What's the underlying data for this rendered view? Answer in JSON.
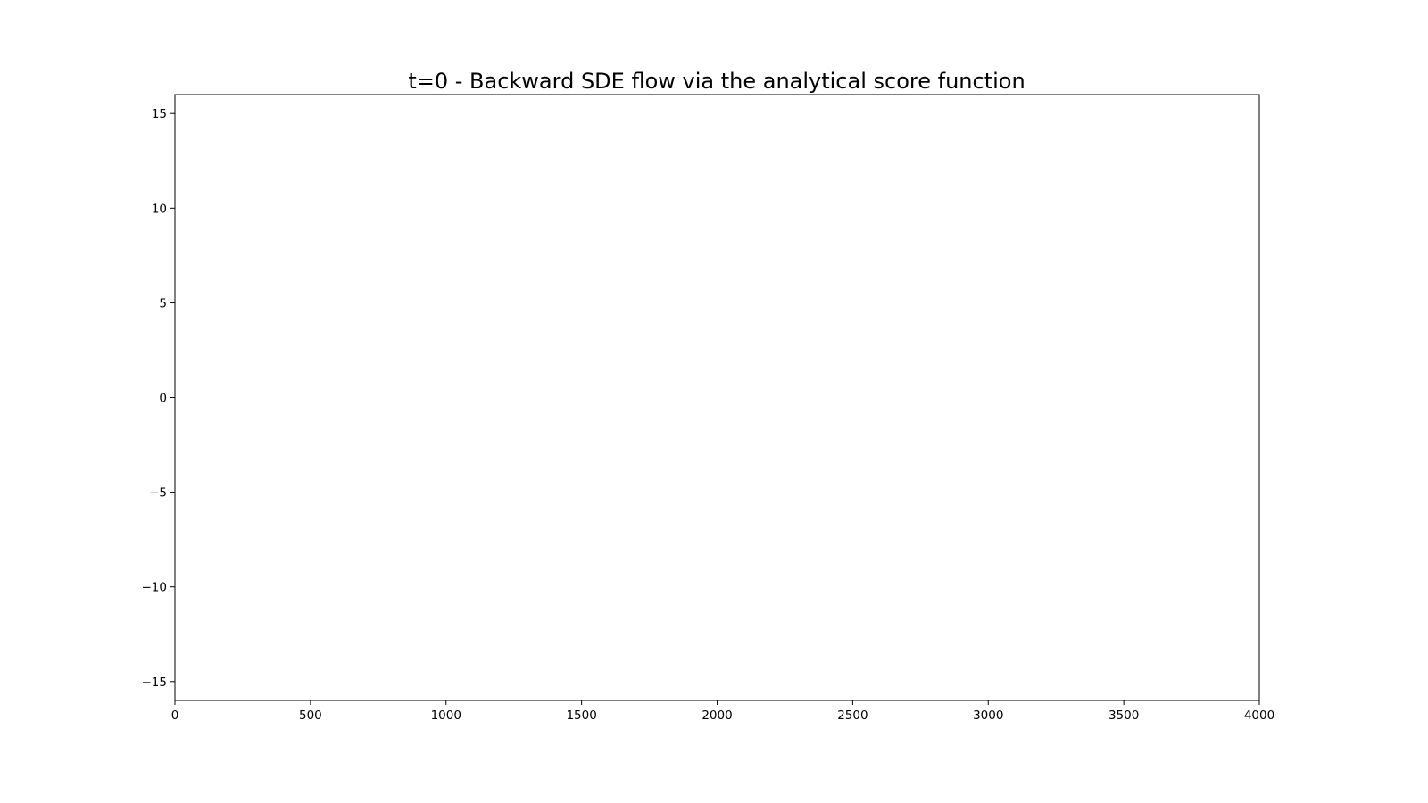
{
  "chart_data": {
    "type": "line",
    "title": "t=0 - Backward SDE flow via the analytical score function",
    "xlabel": "",
    "ylabel": "",
    "xlim": [
      0,
      4000
    ],
    "ylim": [
      -16,
      16
    ],
    "x_ticks": [
      0,
      500,
      1000,
      1500,
      2000,
      2500,
      3000,
      3500,
      4000
    ],
    "x_tick_labels": [
      "0",
      "500",
      "1000",
      "1500",
      "2000",
      "2500",
      "3000",
      "3500",
      "4000"
    ],
    "y_ticks": [
      15,
      10,
      5,
      0,
      -5,
      -10,
      -15
    ],
    "y_tick_labels": [
      "15",
      "10",
      "5",
      "0",
      "−5",
      "−10",
      "−15"
    ],
    "grid": false,
    "series": []
  }
}
